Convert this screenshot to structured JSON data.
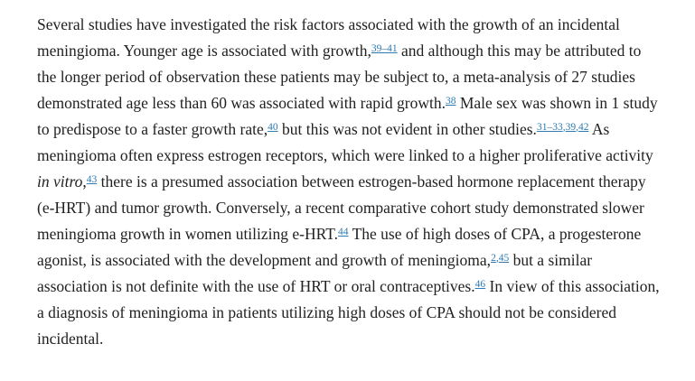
{
  "page": {
    "background": "#ffffff"
  },
  "colors": {
    "text": "#212121",
    "link": "#2d7bb2"
  },
  "paragraph": {
    "segments": [
      {
        "type": "text",
        "text": "Several studies have investigated the risk factors associated with the growth of an incidental meningioma. Younger age is associated with growth,"
      },
      {
        "type": "cite",
        "text": "39–41"
      },
      {
        "type": "text",
        "text": " and although this may be attributed to the longer period of observation these patients may be subject to, a meta-analysis of 27 studies demonstrated age less than 60 was associated with rapid growth."
      },
      {
        "type": "cite",
        "text": "38"
      },
      {
        "type": "text",
        "text": " Male sex was shown in 1 study to predispose to a faster growth rate,"
      },
      {
        "type": "cite",
        "text": "40"
      },
      {
        "type": "text",
        "text": " but this was not evident in other studies."
      },
      {
        "type": "cite",
        "text": "31–33"
      },
      {
        "type": "cite-sep",
        "text": ","
      },
      {
        "type": "cite",
        "text": "39"
      },
      {
        "type": "cite-sep",
        "text": ","
      },
      {
        "type": "cite",
        "text": "42"
      },
      {
        "type": "text",
        "text": " As meningioma often express estrogen receptors, which were linked to a higher proliferative activity "
      },
      {
        "type": "italic",
        "text": "in vitro"
      },
      {
        "type": "text",
        "text": ","
      },
      {
        "type": "cite",
        "text": "43"
      },
      {
        "type": "text",
        "text": " there is a presumed association between estrogen-based hormone replacement therapy (e-HRT) and tumor growth. Conversely, a recent comparative cohort study demonstrated slower meningioma growth in women utilizing e-HRT."
      },
      {
        "type": "cite",
        "text": "44"
      },
      {
        "type": "text",
        "text": " The use of high doses of CPA, a progesterone agonist, is associated with the development and growth of meningioma,"
      },
      {
        "type": "cite",
        "text": "2"
      },
      {
        "type": "cite-sep",
        "text": ","
      },
      {
        "type": "cite",
        "text": "45"
      },
      {
        "type": "text",
        "text": " but a similar association is not definite with the use of HRT or oral contraceptives."
      },
      {
        "type": "cite",
        "text": "46"
      },
      {
        "type": "text",
        "text": " In view of this association, a diagnosis of meningioma in patients utilizing high doses of CPA should not be considered incidental."
      }
    ]
  }
}
